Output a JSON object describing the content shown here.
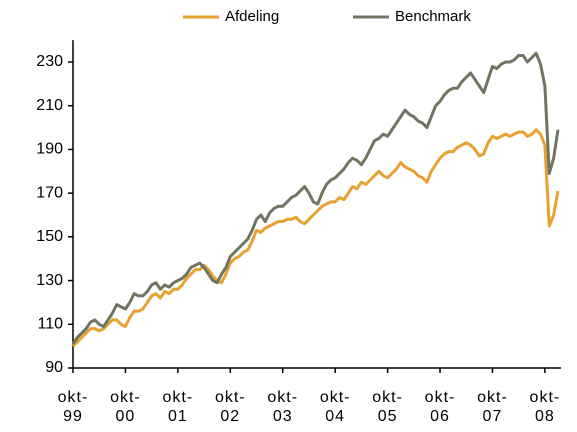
{
  "chart_data": {
    "type": "line",
    "legend": "top",
    "categories": [
      "okt-99",
      null,
      null,
      null,
      null,
      null,
      null,
      null,
      null,
      null,
      null,
      null,
      "okt-00",
      null,
      null,
      null,
      null,
      null,
      null,
      null,
      null,
      null,
      null,
      null,
      "okt-01",
      null,
      null,
      null,
      null,
      null,
      null,
      null,
      null,
      null,
      null,
      null,
      "okt-02",
      null,
      null,
      null,
      null,
      null,
      null,
      null,
      null,
      null,
      null,
      null,
      "okt-03",
      null,
      null,
      null,
      null,
      null,
      null,
      null,
      null,
      null,
      null,
      null,
      "okt-04",
      null,
      null,
      null,
      null,
      null,
      null,
      null,
      null,
      null,
      null,
      null,
      "okt-05",
      null,
      null,
      null,
      null,
      null,
      null,
      null,
      null,
      null,
      null,
      null,
      "okt-06",
      null,
      null,
      null,
      null,
      null,
      null,
      null,
      null,
      null,
      null,
      null,
      "okt-07",
      null,
      null,
      null,
      null,
      null,
      null,
      null,
      null,
      null,
      null,
      null,
      "okt-08",
      null,
      null,
      null
    ],
    "series": [
      {
        "name": "Afdeling",
        "color": "#e8a030",
        "values": [
          100,
          102,
          104,
          106,
          108,
          108,
          107,
          108,
          110,
          112,
          112,
          110,
          109,
          113,
          116,
          116,
          117,
          120,
          123,
          124,
          122,
          125,
          124,
          126,
          126,
          128,
          131,
          133,
          135,
          135,
          137,
          135,
          132,
          130,
          129,
          133,
          138,
          140,
          141,
          143,
          144,
          148,
          153,
          152,
          154,
          155,
          156,
          157,
          157,
          158,
          158,
          159,
          157,
          156,
          158,
          160,
          162,
          164,
          165,
          166,
          166,
          168,
          167,
          170,
          173,
          172,
          175,
          174,
          176,
          178,
          180,
          178,
          177,
          179,
          181,
          184,
          182,
          181,
          180,
          178,
          177,
          175,
          180,
          183,
          186,
          188,
          189,
          189,
          191,
          192,
          193,
          192,
          190,
          187,
          188,
          193,
          196,
          195,
          196,
          197,
          196,
          197,
          198,
          198,
          196,
          197,
          199,
          197,
          192,
          155,
          160,
          171
        ]
      },
      {
        "name": "Benchmark",
        "color": "#6e7560",
        "values": [
          101,
          104,
          106,
          108,
          111,
          112,
          110,
          109,
          112,
          115,
          119,
          118,
          117,
          120,
          124,
          123,
          123,
          125,
          128,
          129,
          126,
          128,
          127,
          129,
          130,
          131,
          133,
          136,
          137,
          138,
          136,
          133,
          130,
          129,
          133,
          136,
          141,
          143,
          145,
          147,
          149,
          153,
          158,
          160,
          157,
          161,
          163,
          164,
          164,
          166,
          168,
          169,
          171,
          173,
          170,
          166,
          165,
          170,
          174,
          176,
          177,
          179,
          181,
          184,
          186,
          185,
          183,
          186,
          190,
          194,
          195,
          197,
          196,
          199,
          202,
          205,
          208,
          206,
          205,
          203,
          202,
          200,
          205,
          210,
          212,
          215,
          217,
          218,
          218,
          221,
          223,
          225,
          222,
          219,
          216,
          222,
          228,
          227,
          229,
          230,
          230,
          231,
          233,
          233,
          230,
          232,
          234,
          229,
          219,
          179,
          186,
          199
        ]
      }
    ],
    "ylim": [
      90,
      240
    ],
    "yticks": [
      90,
      110,
      130,
      150,
      170,
      190,
      210,
      230
    ]
  }
}
